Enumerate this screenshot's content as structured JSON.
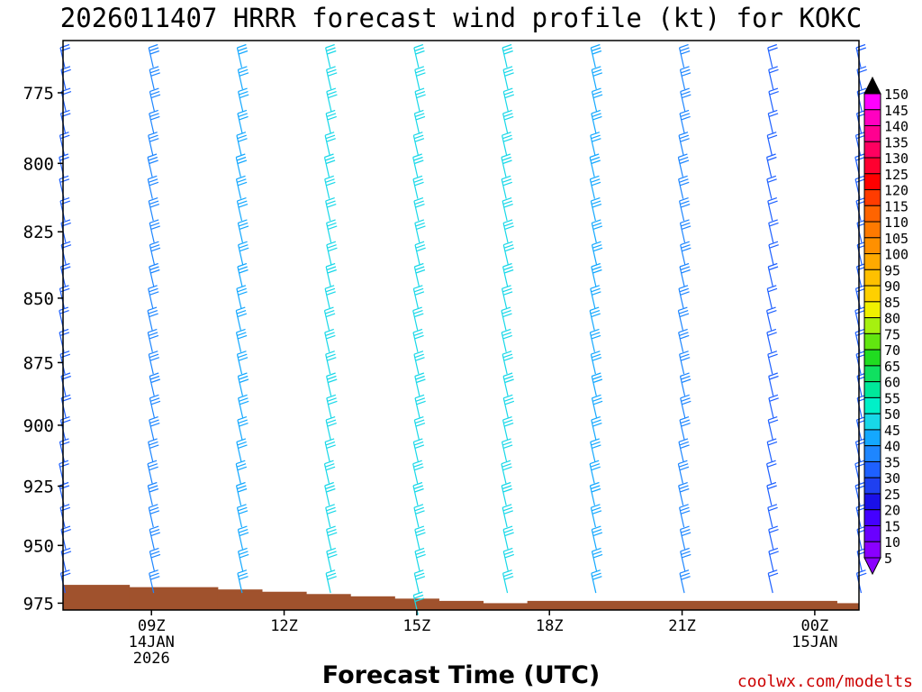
{
  "chart_data": {
    "type": "wind-barb-profile",
    "title": "2026011407 HRRR forecast wind profile (kt) for KOKC",
    "xlabel": "Forecast Time (UTC)",
    "ylabel": "",
    "ylim": [
      978,
      757
    ],
    "x_tick_labels": [
      {
        "hour": 9,
        "lines": [
          "09Z",
          "14JAN",
          "2026"
        ]
      },
      {
        "hour": 12,
        "lines": [
          "12Z"
        ]
      },
      {
        "hour": 15,
        "lines": [
          "15Z"
        ]
      },
      {
        "hour": 18,
        "lines": [
          "18Z"
        ]
      },
      {
        "hour": 21,
        "lines": [
          "21Z"
        ]
      },
      {
        "hour": 24,
        "lines": [
          "00Z",
          "15JAN"
        ]
      }
    ],
    "x_range": [
      7.0,
      25.0
    ],
    "y_ticks": [
      775,
      800,
      825,
      850,
      875,
      900,
      925,
      950,
      975
    ],
    "colorbar": {
      "levels": [
        5,
        10,
        15,
        20,
        25,
        30,
        35,
        40,
        45,
        50,
        55,
        60,
        65,
        70,
        75,
        80,
        85,
        90,
        95,
        100,
        105,
        110,
        115,
        120,
        125,
        130,
        135,
        140,
        145,
        150
      ],
      "colors": [
        "#8a00ff",
        "#6a00ff",
        "#4400ff",
        "#1a10e8",
        "#1f40f0",
        "#1e60ff",
        "#1e86ff",
        "#14a8ff",
        "#18d8e8",
        "#00f0c8",
        "#00e89a",
        "#10e060",
        "#20dc20",
        "#62e610",
        "#a6f010",
        "#f0f000",
        "#ffd000",
        "#ffc000",
        "#ffaa00",
        "#ff9000",
        "#ff7a00",
        "#ff6400",
        "#ff3c00",
        "#ff0000",
        "#ff0030",
        "#ff0060",
        "#ff0090",
        "#ff00c0",
        "#ff00ff",
        "#000000"
      ]
    },
    "series": [
      {
        "hour": 7,
        "speed_kt": 30,
        "surface_pressure": 967
      },
      {
        "hour": 9,
        "speed_kt": 38,
        "surface_pressure": 965
      },
      {
        "hour": 11,
        "speed_kt": 42,
        "surface_pressure": 965
      },
      {
        "hour": 13,
        "speed_kt": 48,
        "surface_pressure": 968
      },
      {
        "hour": 15,
        "speed_kt": 46,
        "surface_pressure": 975
      },
      {
        "hour": 17,
        "speed_kt": 47,
        "surface_pressure": 973
      },
      {
        "hour": 19,
        "speed_kt": 40,
        "surface_pressure": 968
      },
      {
        "hour": 21,
        "speed_kt": 35,
        "surface_pressure": 968
      },
      {
        "hour": 23,
        "speed_kt": 33,
        "surface_pressure": 968
      },
      {
        "hour": 25,
        "speed_kt": 30,
        "surface_pressure": 967
      }
    ],
    "terrain": {
      "color": "#a0522d",
      "steps": [
        {
          "from": 7.0,
          "to": 8.5,
          "pressure": 967
        },
        {
          "from": 8.5,
          "to": 10.5,
          "pressure": 968
        },
        {
          "from": 10.5,
          "to": 11.5,
          "pressure": 969
        },
        {
          "from": 11.5,
          "to": 12.5,
          "pressure": 970
        },
        {
          "from": 12.5,
          "to": 13.5,
          "pressure": 971
        },
        {
          "from": 13.5,
          "to": 14.5,
          "pressure": 972
        },
        {
          "from": 14.5,
          "to": 15.5,
          "pressure": 973
        },
        {
          "from": 15.5,
          "to": 16.5,
          "pressure": 974
        },
        {
          "from": 16.5,
          "to": 17.5,
          "pressure": 975
        },
        {
          "from": 17.5,
          "to": 24.5,
          "pressure": 974
        },
        {
          "from": 24.5,
          "to": 25.0,
          "pressure": 975
        }
      ]
    },
    "credit": "coolwx.com/modelts"
  }
}
